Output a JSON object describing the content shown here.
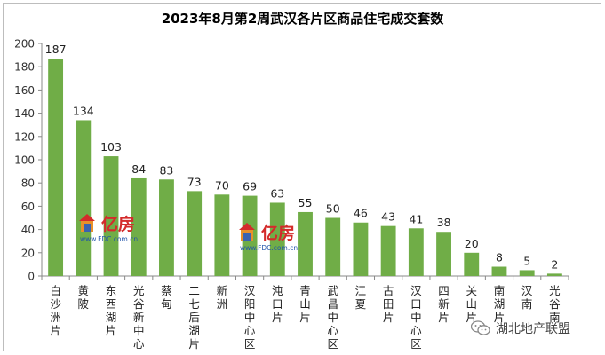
{
  "chart_data": {
    "type": "bar",
    "title": "2023年8月第2周武汉各片区商品住宅成交套数",
    "xlabel": "",
    "ylabel": "",
    "ylim": [
      0,
      200
    ],
    "yticks": [
      0,
      20,
      40,
      60,
      80,
      100,
      120,
      140,
      160,
      180,
      200
    ],
    "grid": false,
    "bar_color": "#70ad47",
    "categories": [
      "白沙洲片",
      "黄陂",
      "东西湖片",
      "光谷新中心",
      "蔡甸",
      "二七后湖片",
      "新洲",
      "汉阳中心区",
      "沌口片",
      "青山片",
      "武昌中心区",
      "江夏",
      "古田片",
      "汉口中心区",
      "四新片",
      "关山片",
      "南湖片",
      "汉南",
      "光谷南"
    ],
    "values": [
      187,
      134,
      103,
      84,
      83,
      73,
      70,
      69,
      63,
      55,
      50,
      46,
      43,
      41,
      38,
      20,
      8,
      5,
      2
    ]
  },
  "watermark": {
    "brand": "亿房",
    "site": "www.FDC.com.cn"
  },
  "badge": {
    "icon": "wechat-icon",
    "text": "湖北地产联盟"
  }
}
